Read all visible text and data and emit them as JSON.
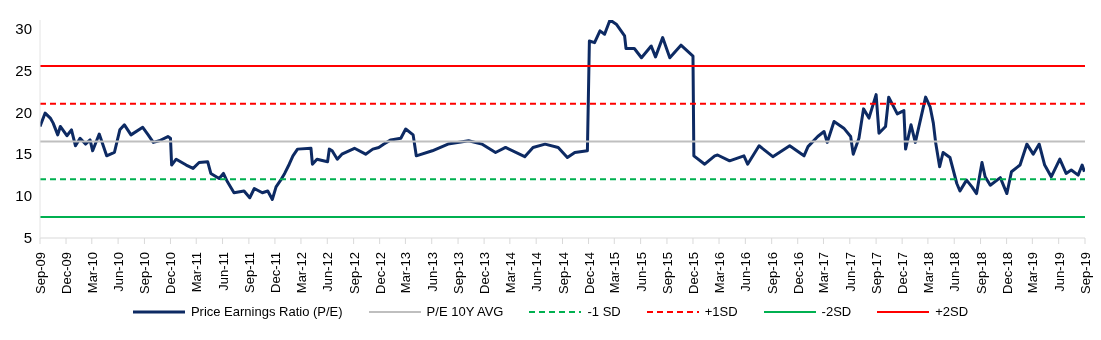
{
  "chart_data": {
    "type": "line",
    "marker": "none",
    "legend": "bottom",
    "grid": false,
    "ylim": [
      5,
      31
    ],
    "yticks": [
      5,
      10,
      15,
      20,
      25,
      30
    ],
    "xlim": [
      "2009-09-01",
      "2019-09-01"
    ],
    "xticks": [
      {
        "value": "2009-09-01",
        "label": "Sep-09"
      },
      {
        "value": "2009-12-01",
        "label": "Dec-09"
      },
      {
        "value": "2010-03-01",
        "label": "Mar-10"
      },
      {
        "value": "2010-06-01",
        "label": "Jun-10"
      },
      {
        "value": "2010-09-01",
        "label": "Sep-10"
      },
      {
        "value": "2010-12-01",
        "label": "Dec-10"
      },
      {
        "value": "2011-03-01",
        "label": "Mar-11"
      },
      {
        "value": "2011-06-01",
        "label": "Jun-11"
      },
      {
        "value": "2011-09-01",
        "label": "Sep-11"
      },
      {
        "value": "2011-12-01",
        "label": "Dec-11"
      },
      {
        "value": "2012-03-01",
        "label": "Mar-12"
      },
      {
        "value": "2012-06-01",
        "label": "Jun-12"
      },
      {
        "value": "2012-09-01",
        "label": "Sep-12"
      },
      {
        "value": "2012-12-01",
        "label": "Dec-12"
      },
      {
        "value": "2013-03-01",
        "label": "Mar-13"
      },
      {
        "value": "2013-06-01",
        "label": "Jun-13"
      },
      {
        "value": "2013-09-01",
        "label": "Sep-13"
      },
      {
        "value": "2013-12-01",
        "label": "Dec-13"
      },
      {
        "value": "2014-03-01",
        "label": "Mar-14"
      },
      {
        "value": "2014-06-01",
        "label": "Jun-14"
      },
      {
        "value": "2014-09-01",
        "label": "Sep-14"
      },
      {
        "value": "2014-12-01",
        "label": "Dec-14"
      },
      {
        "value": "2015-03-01",
        "label": "Mar-15"
      },
      {
        "value": "2015-06-01",
        "label": "Jun-15"
      },
      {
        "value": "2015-09-01",
        "label": "Sep-15"
      },
      {
        "value": "2015-12-01",
        "label": "Dec-15"
      },
      {
        "value": "2016-03-01",
        "label": "Mar-16"
      },
      {
        "value": "2016-06-01",
        "label": "Jun-16"
      },
      {
        "value": "2016-09-01",
        "label": "Sep-16"
      },
      {
        "value": "2016-12-01",
        "label": "Dec-16"
      },
      {
        "value": "2017-03-01",
        "label": "Mar-17"
      },
      {
        "value": "2017-06-01",
        "label": "Jun-17"
      },
      {
        "value": "2017-09-01",
        "label": "Sep-17"
      },
      {
        "value": "2017-12-01",
        "label": "Dec-17"
      },
      {
        "value": "2018-03-01",
        "label": "Mar-18"
      },
      {
        "value": "2018-06-01",
        "label": "Jun-18"
      },
      {
        "value": "2018-09-01",
        "label": "Sep-18"
      },
      {
        "value": "2018-12-01",
        "label": "Dec-18"
      },
      {
        "value": "2019-03-01",
        "label": "Mar-19"
      },
      {
        "value": "2019-06-01",
        "label": "Jun-19"
      },
      {
        "value": "2019-09-01",
        "label": "Sep-19"
      }
    ],
    "series": [
      {
        "name": "Price Earnings Ratio (P/E)",
        "color": "#0d2a63",
        "line_style": "solid",
        "x": [
          "2009-09-01",
          "2009-09-19",
          "2009-10-07",
          "2009-10-17",
          "2009-11-02",
          "2009-11-11",
          "2009-12-04",
          "2009-12-20",
          "2010-01-03",
          "2010-01-19",
          "2010-02-07",
          "2010-02-23",
          "2010-03-04",
          "2010-03-27",
          "2010-04-08",
          "2010-04-22",
          "2010-05-19",
          "2010-06-07",
          "2010-06-23",
          "2010-07-16",
          "2010-08-26",
          "2010-09-14",
          "2010-10-02",
          "2010-10-23",
          "2010-11-22",
          "2010-12-01",
          "2010-12-05",
          "2010-12-21",
          "2011-01-25",
          "2011-02-18",
          "2011-03-11",
          "2011-04-10",
          "2011-04-21",
          "2011-05-20",
          "2011-06-04",
          "2011-06-18",
          "2011-07-11",
          "2011-08-15",
          "2011-09-04",
          "2011-09-20",
          "2011-10-18",
          "2011-11-06",
          "2011-11-22",
          "2011-12-05",
          "2011-12-21",
          "2012-01-04",
          "2012-01-20",
          "2012-02-02",
          "2012-02-18",
          "2012-04-05",
          "2012-04-10",
          "2012-04-26",
          "2012-06-02",
          "2012-06-08",
          "2012-06-18",
          "2012-07-06",
          "2012-07-22",
          "2012-09-04",
          "2012-10-13",
          "2012-11-07",
          "2012-11-28",
          "2012-12-16",
          "2013-01-09",
          "2013-02-13",
          "2013-03-02",
          "2013-03-28",
          "2013-04-08",
          "2013-06-03",
          "2013-07-28",
          "2013-10-08",
          "2013-11-23",
          "2014-01-10",
          "2014-02-14",
          "2014-04-22",
          "2014-05-21",
          "2014-07-02",
          "2014-08-17",
          "2014-09-18",
          "2014-10-14",
          "2014-11-27",
          "2014-12-04",
          "2014-12-22",
          "2015-01-10",
          "2015-01-26",
          "2015-02-14",
          "2015-03-08",
          "2015-04-06",
          "2015-04-11",
          "2015-05-10",
          "2015-06-04",
          "2015-07-08",
          "2015-07-23",
          "2015-08-17",
          "2015-09-11",
          "2015-10-20",
          "2015-12-01",
          "2015-12-04",
          "2016-01-11",
          "2016-02-15",
          "2016-02-25",
          "2016-04-07",
          "2016-05-27",
          "2016-06-09",
          "2016-07-19",
          "2016-09-05",
          "2016-11-03",
          "2016-12-23",
          "2017-01-06",
          "2017-02-09",
          "2017-03-03",
          "2017-03-14",
          "2017-04-07",
          "2017-05-11",
          "2017-06-04",
          "2017-06-13",
          "2017-07-03",
          "2017-07-19",
          "2017-08-07",
          "2017-09-01",
          "2017-09-11",
          "2017-10-04",
          "2017-10-15",
          "2017-11-14",
          "2017-12-07",
          "2017-12-13",
          "2018-01-01",
          "2018-01-16",
          "2018-02-21",
          "2018-03-09",
          "2018-03-20",
          "2018-03-28",
          "2018-04-11",
          "2018-04-23",
          "2018-05-17",
          "2018-06-10",
          "2018-06-21",
          "2018-07-14",
          "2018-08-02",
          "2018-08-18",
          "2018-09-06",
          "2018-09-17",
          "2018-10-05",
          "2018-11-09",
          "2018-12-02",
          "2018-12-18",
          "2019-01-17",
          "2019-02-10",
          "2019-03-04",
          "2019-03-25",
          "2019-04-13",
          "2019-05-06",
          "2019-06-05",
          "2019-06-27",
          "2019-07-15",
          "2019-08-08",
          "2019-08-22",
          "2019-08-30"
        ],
        "values": [
          18.3,
          19.9,
          19.3,
          18.7,
          17.3,
          18.3,
          17.2,
          17.9,
          16.0,
          16.9,
          16.2,
          16.7,
          15.4,
          17.4,
          16.2,
          14.8,
          15.2,
          17.9,
          18.5,
          17.3,
          18.2,
          17.3,
          16.4,
          16.6,
          17.1,
          16.9,
          13.7,
          14.4,
          13.7,
          13.3,
          14.0,
          14.1,
          12.7,
          12.1,
          12.7,
          11.7,
          10.4,
          10.6,
          9.8,
          10.9,
          10.4,
          10.6,
          9.6,
          11.1,
          11.9,
          12.7,
          13.8,
          14.8,
          15.6,
          15.7,
          13.8,
          14.4,
          14.1,
          15.6,
          15.4,
          14.4,
          15.0,
          15.7,
          15.0,
          15.6,
          15.8,
          16.2,
          16.7,
          16.9,
          18.0,
          17.3,
          14.8,
          15.4,
          16.2,
          16.6,
          16.2,
          15.2,
          15.8,
          14.7,
          15.8,
          16.2,
          15.8,
          14.6,
          15.2,
          15.4,
          28.5,
          28.3,
          29.7,
          29.3,
          31.0,
          30.5,
          29.1,
          27.6,
          27.6,
          26.5,
          27.9,
          26.6,
          28.9,
          26.5,
          28.0,
          26.7,
          14.8,
          13.8,
          14.8,
          14.9,
          14.2,
          14.8,
          13.8,
          16.0,
          14.7,
          16.0,
          14.8,
          15.9,
          17.1,
          17.7,
          16.4,
          18.9,
          18.1,
          17.1,
          15.0,
          16.9,
          20.4,
          19.3,
          22.1,
          17.5,
          18.3,
          21.8,
          19.8,
          20.2,
          15.6,
          18.5,
          16.4,
          21.8,
          20.6,
          18.7,
          16.4,
          13.5,
          15.2,
          14.6,
          11.5,
          10.6,
          11.9,
          11.1,
          10.3,
          14.0,
          12.3,
          11.3,
          12.2,
          10.3,
          12.9,
          13.7,
          16.2,
          15.0,
          16.2,
          13.7,
          12.3,
          14.4,
          12.7,
          13.1,
          12.5,
          13.7,
          12.9
        ]
      },
      {
        "name": "P/E 10Y AVG",
        "color": "#bfbfbf",
        "line_style": "solid",
        "x": [
          "2009-09-01",
          "2019-09-01"
        ],
        "values": [
          16.5,
          16.5
        ]
      },
      {
        "name": "-1 SD",
        "color": "#00b050",
        "line_style": "dashed",
        "x": [
          "2009-09-01",
          "2019-09-01"
        ],
        "values": [
          12.0,
          12.0
        ]
      },
      {
        "name": "+1SD",
        "color": "#ff0000",
        "line_style": "dashed",
        "x": [
          "2009-09-01",
          "2019-09-01"
        ],
        "values": [
          21.0,
          21.0
        ]
      },
      {
        "name": "-2SD",
        "color": "#00b050",
        "line_style": "solid",
        "x": [
          "2009-09-01",
          "2019-09-01"
        ],
        "values": [
          7.5,
          7.5
        ]
      },
      {
        "name": "+2SD",
        "color": "#ff0000",
        "line_style": "solid",
        "x": [
          "2009-09-01",
          "2019-09-01"
        ],
        "values": [
          25.5,
          25.5
        ]
      }
    ]
  }
}
